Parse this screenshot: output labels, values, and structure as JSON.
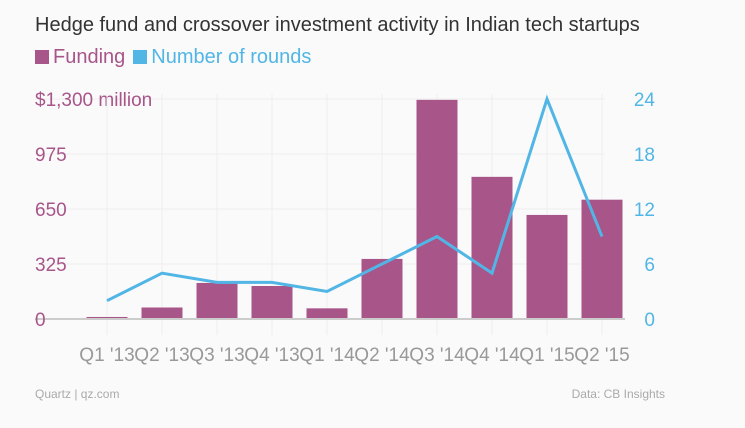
{
  "chart_data": {
    "type": "bar+line",
    "title": "Hedge fund and crossover investment activity in Indian tech startups",
    "categories": [
      "Q1 '13",
      "Q2 '13",
      "Q3 '13",
      "Q4 '13",
      "Q1 '14",
      "Q2 '14",
      "Q3 '14",
      "Q4 '14",
      "Q1 '15",
      "Q2 '15"
    ],
    "series": [
      {
        "name": "Funding",
        "type": "bar",
        "axis": "left",
        "color": "#a8558a",
        "values": [
          12,
          68,
          213,
          195,
          63,
          355,
          1295,
          840,
          615,
          705
        ]
      },
      {
        "name": "Number of rounds",
        "type": "line",
        "axis": "right",
        "color": "#51b6e5",
        "values": [
          2,
          5,
          4,
          4,
          3,
          6,
          9,
          5,
          24,
          9
        ]
      }
    ],
    "left_axis": {
      "ylim": [
        0,
        1300
      ],
      "ticks": [
        0,
        325,
        650,
        975,
        1300
      ],
      "tick_labels": [
        "0",
        "325",
        "650",
        "975",
        "$1,300 million"
      ]
    },
    "right_axis": {
      "ylim": [
        0,
        24
      ],
      "ticks": [
        0,
        6,
        12,
        18,
        24
      ],
      "tick_labels": [
        "0",
        "6",
        "12",
        "18",
        "24"
      ]
    },
    "legend_placement": "top-left",
    "grid": true
  },
  "footer": {
    "source_left": "Quartz | qz.com",
    "source_right": "Data: CB Insights"
  }
}
